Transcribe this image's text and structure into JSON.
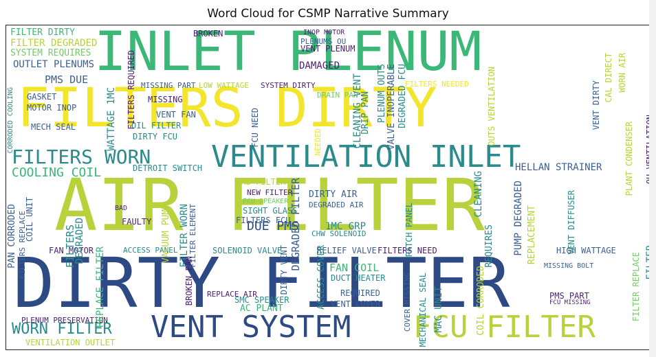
{
  "title": "Word Cloud for CSMP Narrative Summary",
  "colors": {
    "dark_blue": "#2e4a84",
    "teal": "#2a8a8c",
    "green": "#3bb777",
    "lime": "#b7d23a",
    "yellow": "#f2e52b",
    "purple": "#4b1f6f",
    "mid_blue": "#3b5f91",
    "light_green": "#78c96a"
  },
  "words": [
    {
      "text": "INLET PLENUM",
      "color": "green"
    },
    {
      "text": "FILTERS DIRTY",
      "color": "yellow"
    },
    {
      "text": "AIR FILTER",
      "color": "lime"
    },
    {
      "text": "DIRTY FILTER",
      "color": "dark_blue"
    },
    {
      "text": "VENTILATION INLET",
      "color": "teal"
    },
    {
      "text": "VENT SYSTEM",
      "color": "dark_blue"
    },
    {
      "text": "FCU FILTER",
      "color": "lime"
    },
    {
      "text": "FILTERS WORN",
      "color": "teal"
    },
    {
      "text": "WORN FILTER",
      "color": "teal"
    },
    {
      "text": "COOLING COIL",
      "color": "green"
    },
    {
      "text": "PMS DUE",
      "color": "mid_blue"
    },
    {
      "text": "DUE PMS",
      "color": "dark_blue"
    },
    {
      "text": "FILTER DIRTY",
      "color": "green"
    },
    {
      "text": "FILTER DEGRADED",
      "color": "lime"
    },
    {
      "text": "SYSTEM REQUIRES",
      "color": "light_green"
    },
    {
      "text": "OUTLET PLENUMS",
      "color": "mid_blue"
    },
    {
      "text": "BROKEN",
      "color": "purple"
    },
    {
      "text": "INOP MOTOR",
      "color": "purple"
    },
    {
      "text": "PLENUMS OU",
      "color": "mid_blue"
    },
    {
      "text": "VENT PLENUM",
      "color": "purple"
    },
    {
      "text": "DAMAGED",
      "color": "purple"
    },
    {
      "text": "DRAIN PAN",
      "color": "light_green"
    },
    {
      "text": "FILTERS NEEDED",
      "color": "yellow"
    },
    {
      "text": "MISSING PART",
      "color": "mid_blue"
    },
    {
      "text": "LOW WATTAGE",
      "color": "lime"
    },
    {
      "text": "SYSTEM DIRTY",
      "color": "purple"
    },
    {
      "text": "GASKET",
      "color": "mid_blue"
    },
    {
      "text": "MOTOR INOP",
      "color": "mid_blue"
    },
    {
      "text": "MECH SEAL",
      "color": "mid_blue"
    },
    {
      "text": "MISSING",
      "color": "purple"
    },
    {
      "text": "VENT FAN",
      "color": "mid_blue"
    },
    {
      "text": "OIL FILTER",
      "color": "teal"
    },
    {
      "text": "DIRTY FCU",
      "color": "teal"
    },
    {
      "text": "DETROIT SWITCH",
      "color": "teal"
    },
    {
      "text": "HELLAN STRAINER",
      "color": "mid_blue"
    },
    {
      "text": "PMS FILTER",
      "color": "lime"
    },
    {
      "text": "NEW FILTER",
      "color": "purple"
    },
    {
      "text": "FCU SPEAKER",
      "color": "light_green"
    },
    {
      "text": "SIGHT GLASS",
      "color": "teal"
    },
    {
      "text": "FILTERS FCU",
      "color": "mid_blue"
    },
    {
      "text": "DIRTY AIR",
      "color": "mid_blue"
    },
    {
      "text": "DEGRADED AIR",
      "color": "mid_blue"
    },
    {
      "text": "1MC GRP",
      "color": "teal"
    },
    {
      "text": "CHW SOLENOID",
      "color": "teal"
    },
    {
      "text": "RELIEF VALVE",
      "color": "mid_blue"
    },
    {
      "text": "FILTERS NEED",
      "color": "purple"
    },
    {
      "text": "FAN MOTOR",
      "color": "purple"
    },
    {
      "text": "ACCESS PANEL",
      "color": "teal"
    },
    {
      "text": "SOLENOID VALVE",
      "color": "teal"
    },
    {
      "text": "HIGH WATTAGE",
      "color": "mid_blue"
    },
    {
      "text": "FAN COIL",
      "color": "green"
    },
    {
      "text": "DUCT HEATER",
      "color": "teal"
    },
    {
      "text": "REQUIRED",
      "color": "mid_blue"
    },
    {
      "text": "VENT COVER",
      "color": "mid_blue"
    },
    {
      "text": "SMC SPEAKER",
      "color": "teal"
    },
    {
      "text": "AC PLANT",
      "color": "green"
    },
    {
      "text": "PMS PART",
      "color": "purple"
    },
    {
      "text": "FCU MISSING",
      "color": "purple"
    },
    {
      "text": "PLENUM PRESERVATION",
      "color": "purple"
    },
    {
      "text": "VENTILATION OUTLET",
      "color": "lime"
    },
    {
      "text": "FAULTY",
      "color": "purple"
    },
    {
      "text": "BAD",
      "color": "purple"
    },
    {
      "text": "MISSING BOLT",
      "color": "mid_blue"
    },
    {
      "text": "CLEANING VENT",
      "color": "teal"
    },
    {
      "text": "DRIP PAN",
      "color": "teal"
    },
    {
      "text": "PLENUM OUTS",
      "color": "teal"
    },
    {
      "text": "VALVE INOPERABLE",
      "color": "mid_blue"
    },
    {
      "text": "DEGRADED FCU",
      "color": "teal"
    },
    {
      "text": "WATTAGE 1MC",
      "color": "teal"
    },
    {
      "text": "FILTERS REQUIRED",
      "color": "purple"
    },
    {
      "text": "CORRODED COOLING",
      "color": "teal"
    },
    {
      "text": "FILTERS",
      "color": "teal"
    },
    {
      "text": "DEGRADED",
      "color": "teal"
    },
    {
      "text": "REPLACE FILTER",
      "color": "green"
    },
    {
      "text": "FILTER WORN",
      "color": "teal"
    },
    {
      "text": "VACUUM PUMP",
      "color": "lime"
    },
    {
      "text": "FILTER ELEMENT",
      "color": "mid_blue"
    },
    {
      "text": "DEGRADED FILTER",
      "color": "mid_blue"
    },
    {
      "text": "DIRTY VENT",
      "color": "mid_blue"
    },
    {
      "text": "ACCESS COVER",
      "color": "teal"
    },
    {
      "text": "REPLACEMENT",
      "color": "lime"
    },
    {
      "text": "CLEANING",
      "color": "teal"
    },
    {
      "text": "REQUIRES",
      "color": "teal"
    },
    {
      "text": "PUMP DEGRADED",
      "color": "mid_blue"
    },
    {
      "text": "PATCH PANEL",
      "color": "teal"
    },
    {
      "text": "VENT DIFFUSER",
      "color": "teal"
    },
    {
      "text": "PLANT CONDENSER",
      "color": "lime"
    },
    {
      "text": "OU VENTILATION",
      "color": "purple"
    },
    {
      "text": "WORN AIR",
      "color": "lime"
    },
    {
      "text": "CAL DIRECT",
      "color": "lime"
    },
    {
      "text": "VENT DIRTY",
      "color": "mid_blue"
    },
    {
      "text": "FILTER REPLACE",
      "color": "light_green"
    },
    {
      "text": "FILTER",
      "color": "teal"
    },
    {
      "text": "COIL CORRODED",
      "color": "lime"
    },
    {
      "text": "MECHANICAL SEAL",
      "color": "teal"
    },
    {
      "text": "COVER MISSING",
      "color": "mid_blue"
    },
    {
      "text": "MAC UNIT",
      "color": "teal"
    },
    {
      "text": "PAN CORRODED",
      "color": "mid_blue"
    },
    {
      "text": "COIL UNIT",
      "color": "mid_blue"
    },
    {
      "text": "FILTERS REPLACE",
      "color": "mid_blue"
    },
    {
      "text": "BROKEN FAN",
      "color": "purple"
    },
    {
      "text": "OUTS VENTILATION",
      "color": "lime"
    },
    {
      "text": "NEEDED",
      "color": "yellow"
    },
    {
      "text": "FCU NEED",
      "color": "mid_blue"
    },
    {
      "text": "REPLACE AIR",
      "color": "purple"
    }
  ]
}
